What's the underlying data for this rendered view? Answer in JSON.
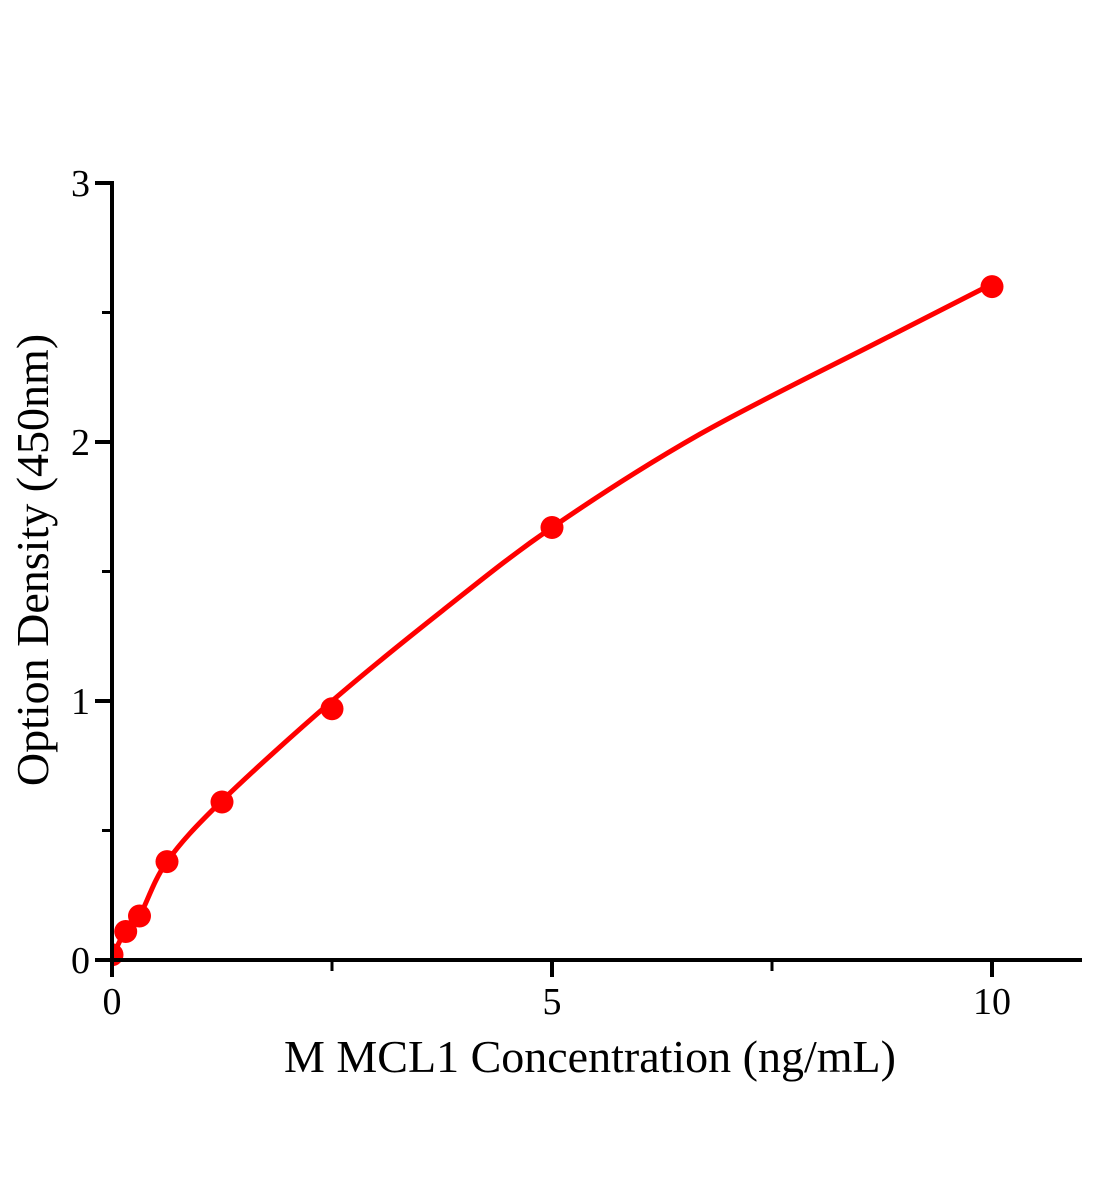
{
  "page": {
    "background_color": "#ffffff",
    "text_color": "#000000"
  },
  "chart_data": {
    "type": "scatter",
    "subtype": "elisa-standard-curve-with-fitted-line",
    "title": "",
    "xlabel": "M MCL1 Concentration（ng/mL）",
    "ylabel": "Option Density（450nm）",
    "xlim": [
      0,
      11
    ],
    "ylim": [
      0,
      3
    ],
    "grid": false,
    "legend": "none",
    "marker_color": "#ff0000",
    "line_color": "#ff0000",
    "axis_color": "#000000",
    "x_ticks": {
      "major": [
        {
          "v": 0,
          "label": "0"
        },
        {
          "v": 5,
          "label": "5"
        },
        {
          "v": 10,
          "label": "10"
        }
      ],
      "minor": [
        2.5,
        7.5
      ]
    },
    "y_ticks": {
      "major": [
        {
          "v": 0,
          "label": "0"
        },
        {
          "v": 1,
          "label": "1"
        },
        {
          "v": 2,
          "label": "2"
        },
        {
          "v": 3,
          "label": "3"
        }
      ],
      "minor": [
        0.5,
        1.5,
        2.5
      ]
    },
    "points": [
      {
        "x": 0,
        "od": 0.02
      },
      {
        "x": 0.156,
        "od": 0.11
      },
      {
        "x": 0.3125,
        "od": 0.17
      },
      {
        "x": 0.625,
        "od": 0.38
      },
      {
        "x": 1.25,
        "od": 0.61
      },
      {
        "x": 2.5,
        "od": 0.97
      },
      {
        "x": 5,
        "od": 1.67
      },
      {
        "x": 10,
        "od": 2.6
      }
    ],
    "fit_curve": [
      {
        "x": 0,
        "od": 0.01
      },
      {
        "x": 0.156,
        "od": 0.115
      },
      {
        "x": 0.3125,
        "od": 0.17
      },
      {
        "x": 0.625,
        "od": 0.38
      },
      {
        "x": 1.25,
        "od": 0.615
      },
      {
        "x": 2.5,
        "od": 1.0
      },
      {
        "x": 3.76,
        "od": 1.35
      },
      {
        "x": 5,
        "od": 1.67
      },
      {
        "x": 6.68,
        "od": 2.03
      },
      {
        "x": 8.73,
        "od": 2.39
      },
      {
        "x": 10,
        "od": 2.61
      }
    ]
  }
}
